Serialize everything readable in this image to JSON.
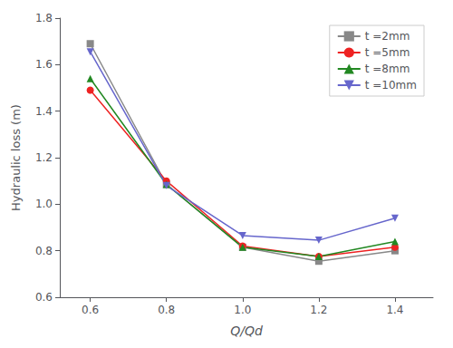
{
  "chart_data": {
    "type": "line",
    "x": [
      0.6,
      0.8,
      1.0,
      1.2,
      1.4
    ],
    "series": [
      {
        "name": "t =2mm",
        "color": "#888888",
        "marker": "square",
        "values": [
          1.69,
          1.085,
          0.815,
          0.755,
          0.8
        ]
      },
      {
        "name": "t =5mm",
        "color": "#ee2222",
        "marker": "circle",
        "values": [
          1.49,
          1.1,
          0.82,
          0.775,
          0.815
        ]
      },
      {
        "name": "t =8mm",
        "color": "#228822",
        "marker": "triangle-up",
        "values": [
          1.54,
          1.085,
          0.815,
          0.775,
          0.84
        ]
      },
      {
        "name": "t =10mm",
        "color": "#6666cc",
        "marker": "triangle-down",
        "values": [
          1.655,
          1.08,
          0.865,
          0.845,
          0.94
        ]
      }
    ],
    "xlabel": "Q/Qd",
    "ylabel": "Hydraulic loss (m)",
    "xlim": [
      0.52,
      1.5
    ],
    "ylim": [
      0.6,
      1.8
    ],
    "xticks": [
      0.6,
      0.8,
      {
        "value": 1.0,
        "label": "1.0"
      },
      1.2,
      1.4
    ],
    "yticks": [
      0.6,
      0.8,
      {
        "value": 1.0,
        "label": "1.0"
      },
      1.2,
      1.4,
      1.6,
      1.8
    ],
    "grid": false,
    "legend": "upper right"
  }
}
